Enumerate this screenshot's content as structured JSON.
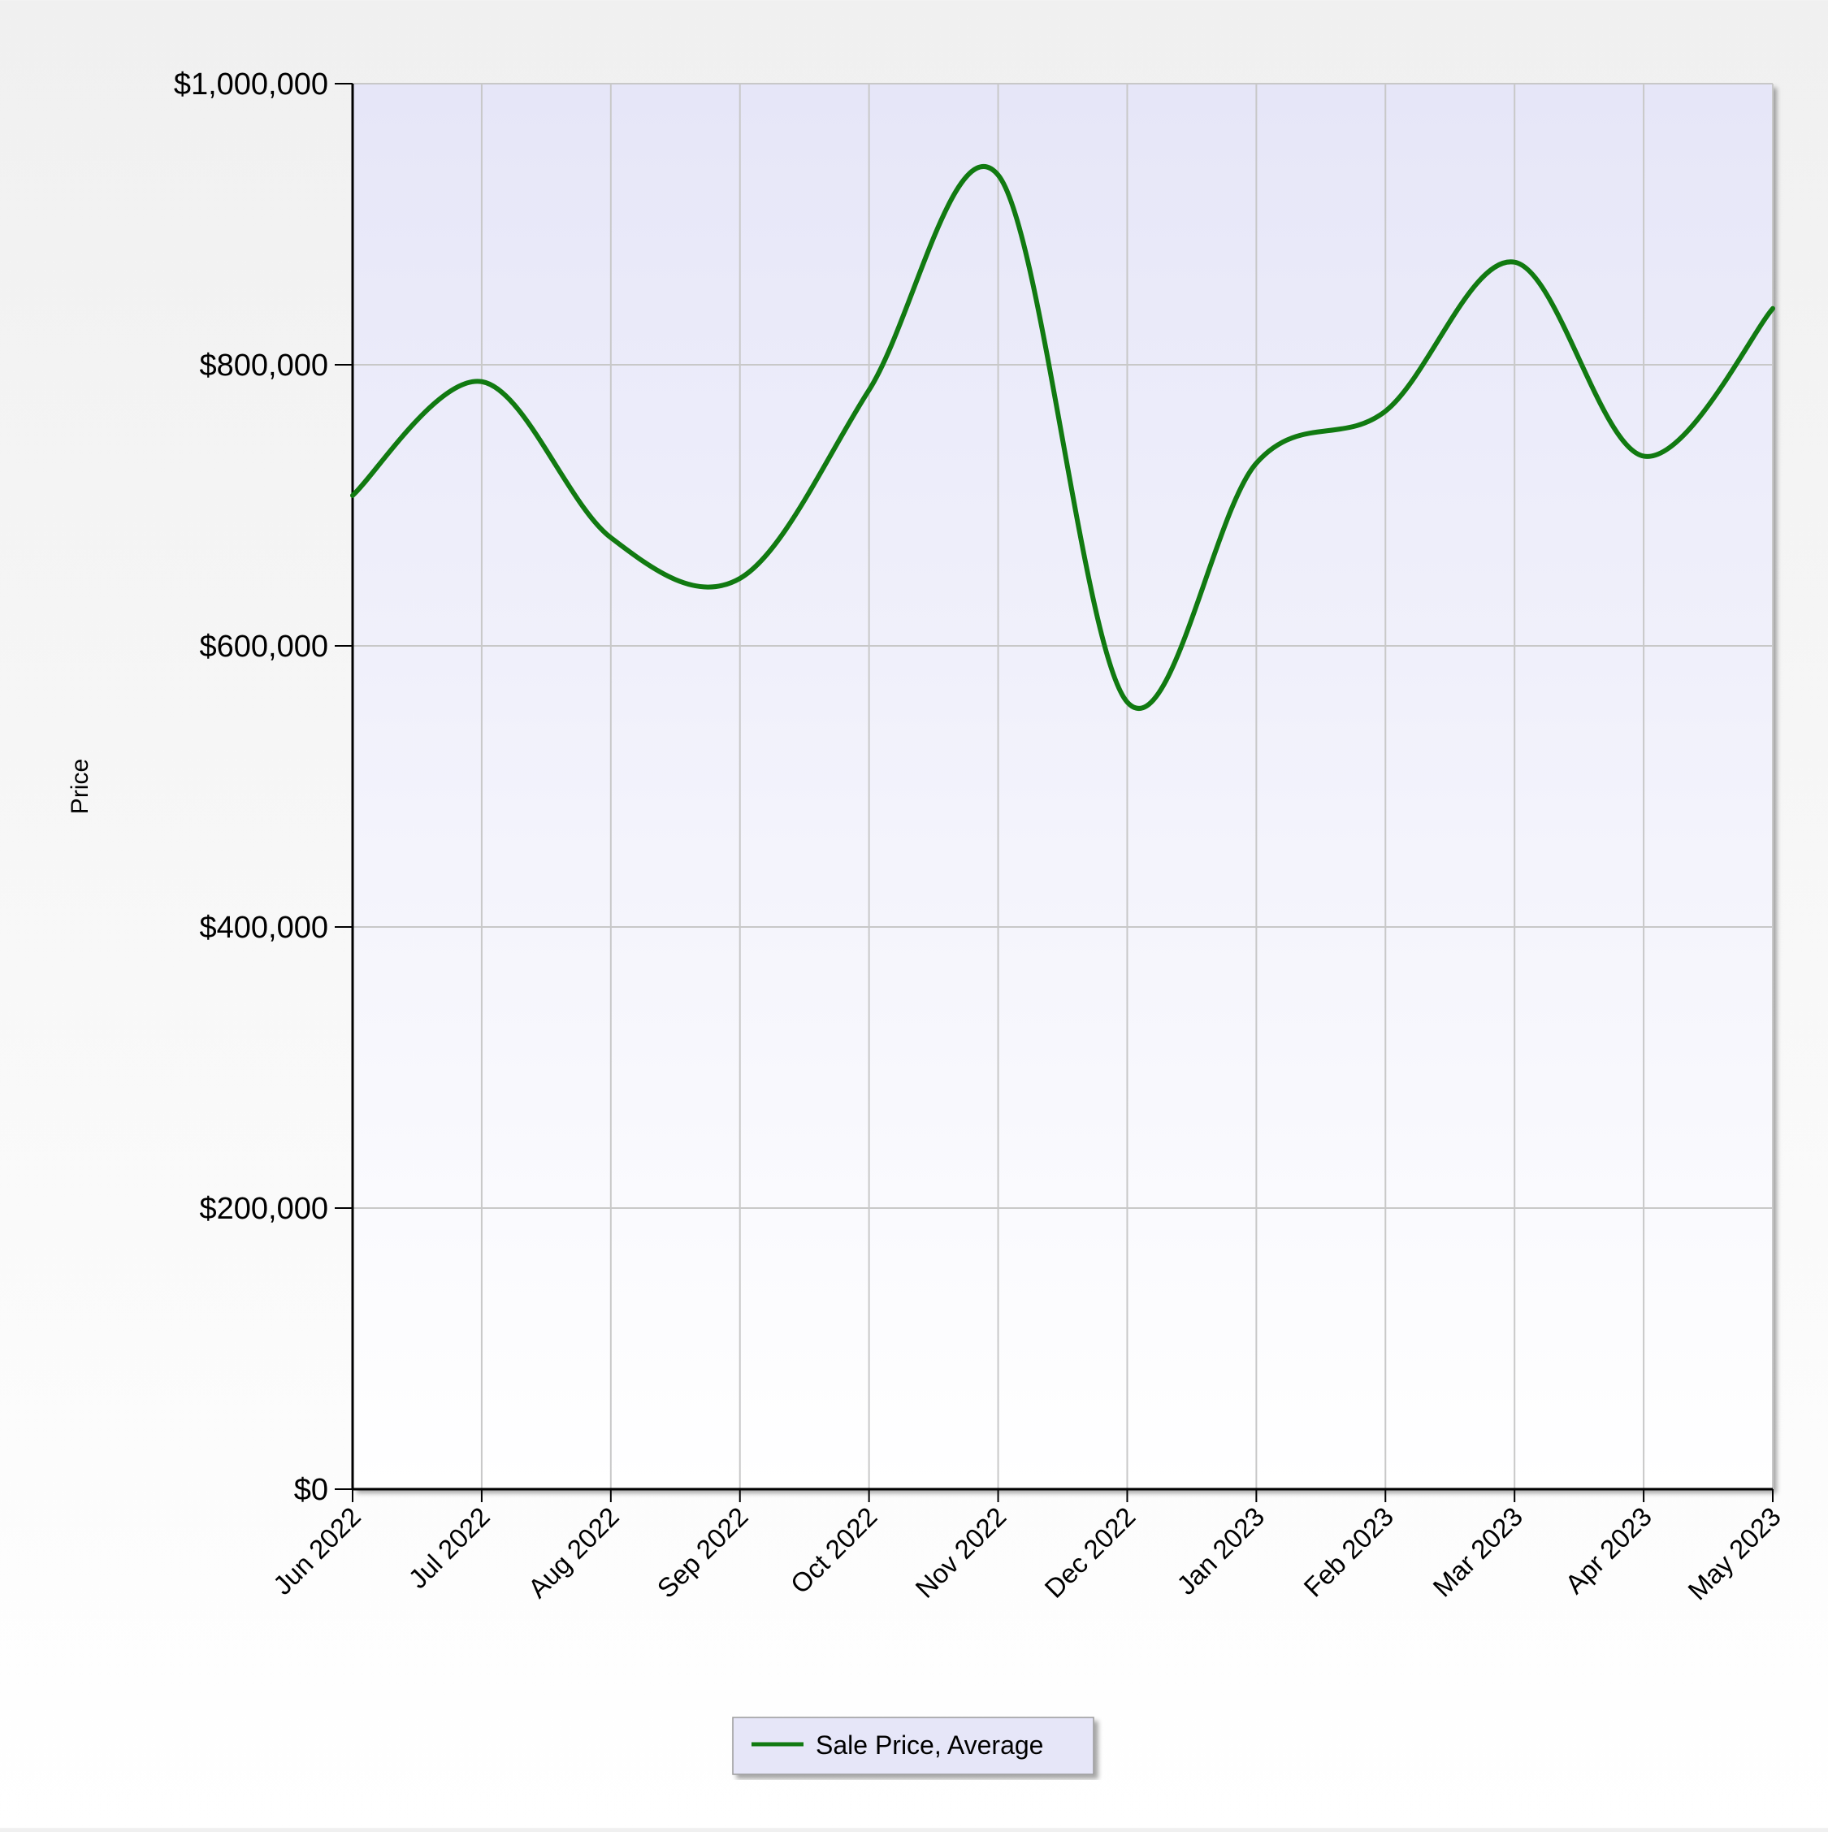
{
  "chart_data": {
    "type": "line",
    "title": "",
    "xlabel": "",
    "ylabel": "Price",
    "categories": [
      "Jun 2022",
      "Jul 2022",
      "Aug 2022",
      "Sep 2022",
      "Oct 2022",
      "Nov 2022",
      "Dec 2022",
      "Jan 2023",
      "Feb 2023",
      "Mar 2023",
      "Apr 2023",
      "May 2023"
    ],
    "ylim": [
      0,
      1000000
    ],
    "yticks": [
      0,
      200000,
      400000,
      600000,
      800000,
      1000000
    ],
    "ytick_labels": [
      "$0",
      "$200,000",
      "$400,000",
      "$600,000",
      "$800,000",
      "$1,000,000"
    ],
    "grid": true,
    "legend_position": "bottom-center",
    "series": [
      {
        "name": "Sale Price, Average",
        "color": "#117a11",
        "values": [
          707000,
          788000,
          677000,
          648000,
          782000,
          935000,
          560000,
          730000,
          767000,
          873000,
          735000,
          840000
        ]
      }
    ]
  },
  "colors": {
    "plot_bg_top": "#e6e6f8",
    "plot_bg_bottom": "#ffffff",
    "grid": "#c8c8c8",
    "axis": "#000000",
    "legend_bg": "#e6e6f8",
    "legend_border": "#9a9a9a"
  }
}
